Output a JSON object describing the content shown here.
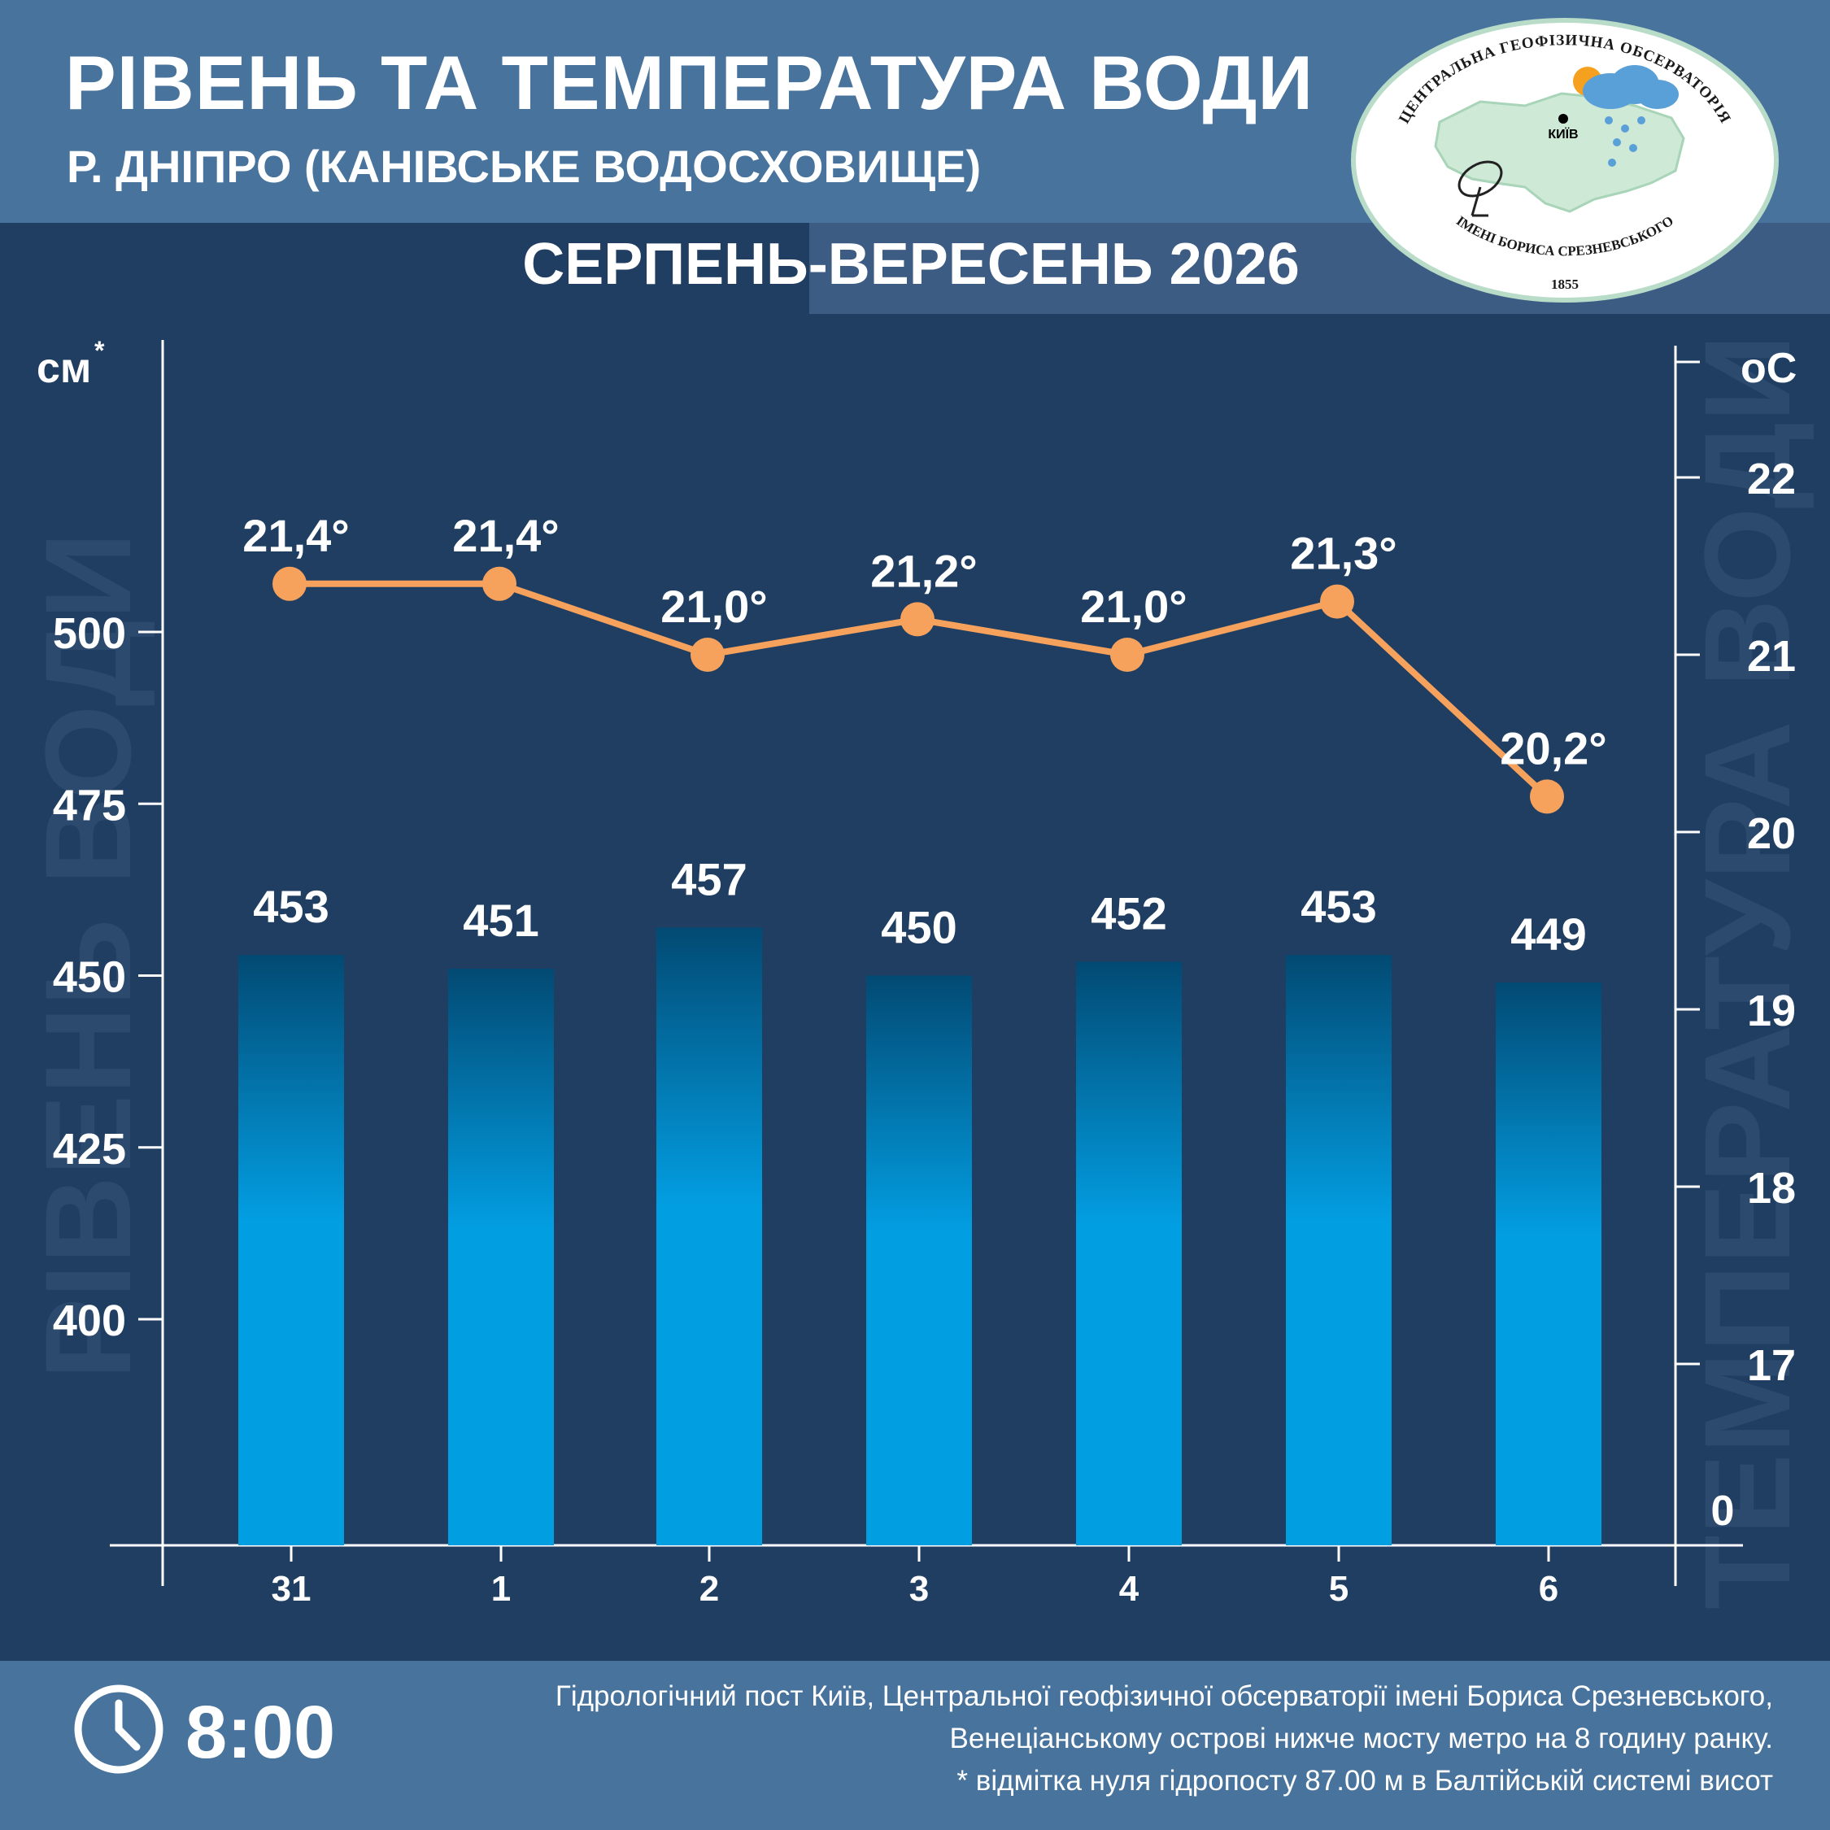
{
  "header": {
    "title": "РІВЕНЬ ТА ТЕМПЕРАТУРА ВОДИ",
    "subtitle": "Р. ДНІПРО (КАНІВСЬКЕ ВОДОСХОВИЩЕ)",
    "period": "СЕРПЕНЬ-ВЕРЕСЕНЬ 2026"
  },
  "logo": {
    "top_text": "ЦЕНТРАЛЬНА ГЕОФІЗИЧНА ОБСЕРВАТОРІЯ",
    "bottom_text": "ІМЕНІ БОРИСА СРЕЗНЕВСЬКОГО",
    "year": "1855",
    "city": "КИЇВ"
  },
  "footer": {
    "time": "8:00",
    "note_line1": "Гідрологічний пост Київ, Центральної геофізичної обсерваторії імені Бориса Срезневського,",
    "note_line2": "Венеціанському острові нижче мосту метро  на 8 годину ранку.",
    "note_line3": "* відмітка нуля гідропосту 87.00 м в Балтійській системі висот"
  },
  "colors": {
    "background": "#203e62",
    "header": "#48739c",
    "bar_top": "#024a73",
    "bar_bottom": "#029ee2",
    "line": "#f6a25c",
    "watermark": "#2c4a6e"
  },
  "chart_data": {
    "type": "bar+line",
    "categories": [
      "31",
      "1",
      "2",
      "3",
      "4",
      "5",
      "6"
    ],
    "left_axis": {
      "unit": "см",
      "unit_mark": "*",
      "watermark": "РІВЕНЬ ВОДИ",
      "ticks": [
        400,
        425,
        450,
        475,
        500
      ],
      "range": [
        400,
        500
      ]
    },
    "right_axis": {
      "unit": "оС",
      "watermark": "ТЕМПЕРАТУРА ВОДИ",
      "ticks": [
        17,
        18,
        19,
        20,
        21,
        22
      ],
      "zero_label": "0",
      "range": [
        17,
        22
      ]
    },
    "series": [
      {
        "kind": "bar",
        "axis": "left",
        "values": [
          453,
          451,
          457,
          450,
          452,
          453,
          449
        ],
        "labels": [
          "453",
          "451",
          "457",
          "450",
          "452",
          "453",
          "449"
        ]
      },
      {
        "kind": "line",
        "axis": "right",
        "values": [
          21.4,
          21.4,
          21.0,
          21.2,
          21.0,
          21.3,
          20.2
        ],
        "labels": [
          "21,4°",
          "21,4°",
          "21,0°",
          "21,2°",
          "21,0°",
          "21,3°",
          "20,2°"
        ]
      }
    ]
  }
}
